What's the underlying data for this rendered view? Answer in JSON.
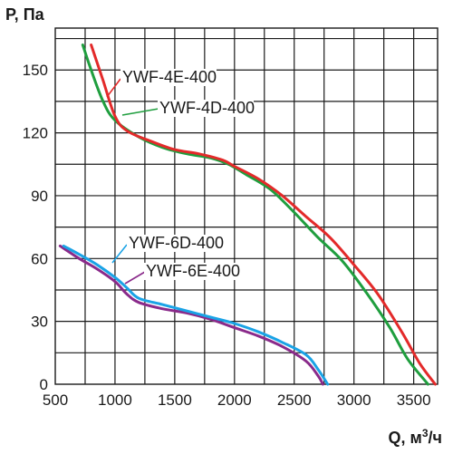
{
  "chart_data": {
    "type": "line",
    "ylabel": "P, Па",
    "xlabel_main": "Q, м",
    "xlabel_sup": "3",
    "xlabel_tail": "/ч",
    "xlim": [
      500,
      3700
    ],
    "ylim": [
      0,
      170
    ],
    "x_ticks": [
      500,
      1000,
      1500,
      2000,
      2500,
      3000,
      3500
    ],
    "y_ticks": [
      0,
      30,
      60,
      90,
      120,
      150
    ],
    "grid": true,
    "series": [
      {
        "name": "YWF-4E-400",
        "color": "#e32a2a",
        "points": [
          [
            800,
            162
          ],
          [
            900,
            145
          ],
          [
            1000,
            128
          ],
          [
            1100,
            121
          ],
          [
            1300,
            116
          ],
          [
            1500,
            112
          ],
          [
            1700,
            110
          ],
          [
            1900,
            107
          ],
          [
            2000,
            104
          ],
          [
            2200,
            98
          ],
          [
            2400,
            90
          ],
          [
            2600,
            80
          ],
          [
            2800,
            70
          ],
          [
            3000,
            57
          ],
          [
            3200,
            43
          ],
          [
            3400,
            25
          ],
          [
            3550,
            10
          ],
          [
            3680,
            0
          ]
        ]
      },
      {
        "name": "YWF-4D-400",
        "color": "#1f9e3e",
        "points": [
          [
            730,
            162
          ],
          [
            800,
            150
          ],
          [
            900,
            135
          ],
          [
            1000,
            126
          ],
          [
            1200,
            118
          ],
          [
            1400,
            113
          ],
          [
            1600,
            110
          ],
          [
            1800,
            108
          ],
          [
            1950,
            105
          ],
          [
            2100,
            100
          ],
          [
            2300,
            93
          ],
          [
            2500,
            82
          ],
          [
            2700,
            70
          ],
          [
            2900,
            59
          ],
          [
            3100,
            44
          ],
          [
            3300,
            27
          ],
          [
            3450,
            12
          ],
          [
            3620,
            0
          ]
        ]
      },
      {
        "name": "YWF-6D-400",
        "color": "#1aa3e6",
        "points": [
          [
            570,
            66
          ],
          [
            700,
            62
          ],
          [
            850,
            57
          ],
          [
            1000,
            51
          ],
          [
            1100,
            46
          ],
          [
            1200,
            41
          ],
          [
            1400,
            38
          ],
          [
            1600,
            35
          ],
          [
            1800,
            32
          ],
          [
            2000,
            29
          ],
          [
            2200,
            25
          ],
          [
            2400,
            20
          ],
          [
            2600,
            14
          ],
          [
            2700,
            7
          ],
          [
            2780,
            0
          ]
        ]
      },
      {
        "name": "YWF-6E-400",
        "color": "#8a2a8a",
        "points": [
          [
            540,
            66
          ],
          [
            700,
            60
          ],
          [
            850,
            55
          ],
          [
            1000,
            49
          ],
          [
            1100,
            43
          ],
          [
            1200,
            39
          ],
          [
            1400,
            36
          ],
          [
            1600,
            34
          ],
          [
            1800,
            31
          ],
          [
            2000,
            27
          ],
          [
            2200,
            23
          ],
          [
            2400,
            18
          ],
          [
            2600,
            11
          ],
          [
            2700,
            4
          ],
          [
            2740,
            0
          ]
        ]
      }
    ],
    "annotations": [
      {
        "text": "YWF-4E-400",
        "series": 0
      },
      {
        "text": "YWF-4D-400",
        "series": 1
      },
      {
        "text": "YWF-6D-400",
        "series": 2
      },
      {
        "text": "YWF-6E-400",
        "series": 3
      }
    ]
  }
}
